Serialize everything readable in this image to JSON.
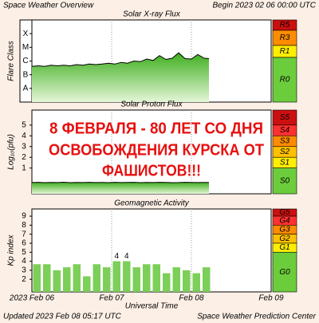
{
  "header": {
    "title": "Space Weather Overview",
    "begin": "Begin 2023 02 06 00:00 UTC"
  },
  "chart_data": [
    {
      "type": "line",
      "title": "Solar X-ray Flux",
      "y_label": "Flare Class",
      "log_scale": true,
      "ylim": [
        1e-09,
        0.001
      ],
      "yticks": [
        {
          "value": 1e-08,
          "label": "A"
        },
        {
          "value": 1e-07,
          "label": "B"
        },
        {
          "value": 1e-06,
          "label": "C"
        },
        {
          "value": 1e-05,
          "label": "M"
        },
        {
          "value": 0.0001,
          "label": "X"
        }
      ],
      "xlim": [
        0,
        3
      ],
      "x": [
        0,
        0.08,
        0.16,
        0.24,
        0.32,
        0.4,
        0.48,
        0.56,
        0.64,
        0.72,
        0.8,
        0.88,
        0.96,
        1.04,
        1.12,
        1.2,
        1.28,
        1.36,
        1.44,
        1.52,
        1.6,
        1.68,
        1.76,
        1.84,
        1.92,
        2,
        2.08,
        2.16,
        2.22
      ],
      "series": [
        {
          "color": "#000000",
          "values": [
            4e-07,
            4.5e-07,
            4e-07,
            5e-07,
            4.5e-07,
            5e-07,
            4.5e-07,
            5.5e-07,
            5e-07,
            6e-07,
            5.5e-07,
            6e-07,
            7e-07,
            6e-07,
            8e-07,
            7e-07,
            1e-06,
            9e-07,
            1.4e-06,
            1.1e-06,
            2.5e-06,
            1.3e-06,
            1.6e-06,
            4e-06,
            1.5e-06,
            1.4e-06,
            3e-06,
            1.6e-06,
            1.5e-06
          ]
        }
      ],
      "scale": [
        {
          "label": "R5",
          "color": "#cc1010"
        },
        {
          "label": "R3",
          "color": "#ff8c00"
        },
        {
          "label": "R1",
          "color": "#ffee00"
        },
        {
          "label": "R0",
          "color": "#6ccd3c"
        }
      ]
    },
    {
      "type": "line",
      "title": "Solar Proton Flux",
      "y_label": "Log₁₀(pfu)",
      "ylim": [
        -1.4,
        6.4
      ],
      "yticks": [
        1,
        2,
        3,
        4,
        5
      ],
      "xlim": [
        0,
        3
      ],
      "x": [
        0,
        0.08,
        0.16,
        0.24,
        0.32,
        0.4,
        0.48,
        0.56,
        0.64,
        0.72,
        0.8,
        0.88,
        0.96,
        1.04,
        1.12,
        1.2,
        1.28,
        1.36,
        1.44,
        1.52,
        1.6,
        1.68,
        1.76,
        1.84,
        1.92,
        2,
        2.08,
        2.16,
        2.22
      ],
      "series": [
        {
          "color": "#000000",
          "values": [
            -0.35,
            -0.33,
            -0.36,
            -0.34,
            -0.35,
            -0.32,
            -0.36,
            -0.34,
            -0.35,
            -0.33,
            -0.35,
            -0.34,
            -0.36,
            -0.33,
            -0.35,
            -0.34,
            -0.33,
            -0.36,
            -0.34,
            -0.35,
            -0.33,
            -0.34,
            -0.36,
            -0.35,
            -0.33,
            -0.34,
            -0.35,
            -0.34,
            -0.35
          ]
        }
      ],
      "scale": [
        {
          "label": "S5",
          "color": "#cc1010"
        },
        {
          "label": "S4",
          "color": "#ff3030"
        },
        {
          "label": "S3",
          "color": "#ff8c00"
        },
        {
          "label": "S2",
          "color": "#ffc000"
        },
        {
          "label": "S1",
          "color": "#ffee00"
        },
        {
          "label": "S0",
          "color": "#6ccd3c"
        }
      ]
    },
    {
      "type": "bar",
      "title": "Geomagnetic Activity",
      "y_label": "Kp index",
      "ylim": [
        0.6,
        9.8
      ],
      "yticks": [
        2,
        3,
        4,
        5,
        6,
        7,
        8,
        9
      ],
      "xlim": [
        0,
        3
      ],
      "xticks": [
        {
          "value": 0,
          "label": "2023 Feb 06"
        },
        {
          "value": 1,
          "label": "Feb 07"
        },
        {
          "value": 2,
          "label": "Feb 08"
        },
        {
          "value": 3,
          "label": "Feb 09"
        }
      ],
      "x_label": "Universal Time",
      "bar_width": 0.125,
      "color": "#7ccf58",
      "x": [
        0,
        0.125,
        0.25,
        0.375,
        0.5,
        0.625,
        0.75,
        0.875,
        1,
        1.125,
        1.25,
        1.375,
        1.5,
        1.625,
        1.75,
        1.875,
        2,
        2.125
      ],
      "values": [
        3.67,
        3.67,
        3,
        3.33,
        3.67,
        2.33,
        3.67,
        3.33,
        4,
        4,
        3.33,
        3.67,
        3.67,
        2.67,
        3.33,
        3,
        2.67,
        3.33
      ],
      "value_labels": [
        null,
        null,
        null,
        null,
        null,
        null,
        null,
        null,
        "4",
        "4",
        null,
        null,
        null,
        null,
        null,
        null,
        null,
        null
      ],
      "scale": [
        {
          "label": "G5",
          "color": "#cc1010"
        },
        {
          "label": "G4",
          "color": "#ff3030"
        },
        {
          "label": "G3",
          "color": "#ff8c00"
        },
        {
          "label": "G2",
          "color": "#ffc000"
        },
        {
          "label": "G1",
          "color": "#ffee00"
        },
        {
          "label": "G0",
          "color": "#6ccd3c"
        }
      ]
    }
  ],
  "annotation": {
    "lines": [
      "8 ФЕВРАЛЯ - 80 ЛЕТ СО ДНЯ",
      "ОСВОБОЖДЕНИЯ КУРСКА ОТ",
      "ФАШИСТОВ!!!"
    ]
  },
  "footer": {
    "updated": "Updated 2023 Feb 08 05:17 UTC",
    "center": "Space Weather Prediction Center"
  }
}
